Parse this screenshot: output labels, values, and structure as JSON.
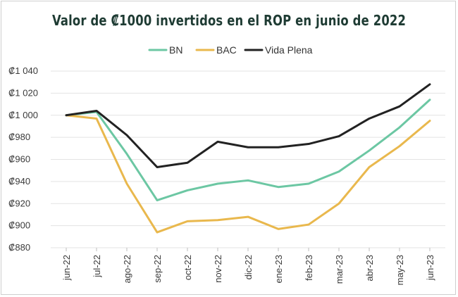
{
  "chart_data": {
    "type": "line",
    "title": "Valor de ₡1000 invertidos en el ROP en junio de 2022",
    "xlabel": "",
    "ylabel": "",
    "categories": [
      "jun-22",
      "jul-22",
      "ago-22",
      "sep-22",
      "oct-22",
      "nov-22",
      "dic-22",
      "ene-23",
      "feb-23",
      "mar-23",
      "abr-23",
      "may-23",
      "jun-23"
    ],
    "ylim": [
      880,
      1040
    ],
    "yticks": [
      880,
      900,
      920,
      940,
      960,
      980,
      1000,
      1020,
      1040
    ],
    "ytick_labels": [
      "₡880",
      "₡900",
      "₡920",
      "₡940",
      "₡960",
      "₡980",
      "₡1 000",
      "₡1 020",
      "₡1 040"
    ],
    "grid": true,
    "legend_position": "top-center",
    "series": [
      {
        "name": "BN",
        "color": "#6cc7a3",
        "values": [
          1000,
          1003,
          965,
          923,
          932,
          938,
          941,
          935,
          938,
          949,
          968,
          989,
          1014
        ]
      },
      {
        "name": "BAC",
        "color": "#e9b84d",
        "values": [
          1000,
          997,
          938,
          894,
          904,
          905,
          908,
          897,
          901,
          920,
          953,
          972,
          995
        ]
      },
      {
        "name": "Vida Plena",
        "color": "#222222",
        "values": [
          1000,
          1004,
          982,
          953,
          957,
          976,
          971,
          971,
          974,
          981,
          997,
          1008,
          1028
        ]
      }
    ]
  }
}
